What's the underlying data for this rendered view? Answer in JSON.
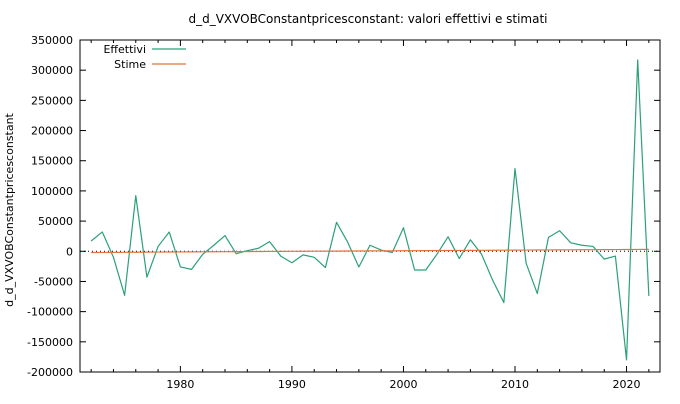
{
  "chart_data": {
    "type": "line",
    "title": "d_d_VXVOBConstantpricesconstant: valori effettivi e stimati",
    "xlabel": "",
    "ylabel": "d_d_VXVOBConstantpricesconstant",
    "xlim": [
      1971,
      2023
    ],
    "ylim": [
      -200000,
      350000
    ],
    "grid": false,
    "legend_position": "top-left",
    "x_ticks": [
      1980,
      1990,
      2000,
      2010,
      2020
    ],
    "x_tick_labels": [
      "1980",
      "1990",
      "2000",
      "2010",
      "2020"
    ],
    "y_ticks": [
      -200000,
      -150000,
      -100000,
      -50000,
      0,
      50000,
      100000,
      150000,
      200000,
      250000,
      300000,
      350000
    ],
    "y_tick_labels": [
      "-200000",
      "-150000",
      "-100000",
      "-50000",
      "0",
      "50000",
      "100000",
      "150000",
      "200000",
      "250000",
      "300000",
      "350000"
    ],
    "zero_line": true,
    "x": [
      1972,
      1973,
      1974,
      1975,
      1976,
      1977,
      1978,
      1979,
      1980,
      1981,
      1982,
      1983,
      1984,
      1985,
      1986,
      1987,
      1988,
      1989,
      1990,
      1991,
      1992,
      1993,
      1994,
      1995,
      1996,
      1997,
      1998,
      1999,
      2000,
      2001,
      2002,
      2003,
      2004,
      2005,
      2006,
      2007,
      2008,
      2009,
      2010,
      2011,
      2012,
      2013,
      2014,
      2015,
      2016,
      2017,
      2018,
      2019,
      2020,
      2021,
      2022
    ],
    "series": [
      {
        "name": "Effettivi",
        "color": "#2ca07a",
        "values": [
          17000,
          32000,
          -10000,
          -73000,
          92000,
          -43000,
          8000,
          32000,
          -26000,
          -30000,
          -5000,
          10000,
          26000,
          -4000,
          1000,
          5000,
          16000,
          -8000,
          -19000,
          -6000,
          -10000,
          -27000,
          48000,
          15000,
          -26000,
          10000,
          2000,
          -2000,
          39000,
          -31000,
          -31000,
          -5000,
          24000,
          -12000,
          19000,
          -5000,
          -48000,
          -85000,
          137000,
          -20000,
          -70000,
          23000,
          34000,
          14000,
          10000,
          8000,
          -13000,
          -8000,
          -180000,
          317000,
          -74000
        ]
      },
      {
        "name": "Stime",
        "color": "#e0743b",
        "values": [
          -2000,
          -1900,
          -1800,
          -1700,
          -1600,
          -1400,
          -1300,
          -1200,
          -1100,
          -1000,
          -900,
          -800,
          -700,
          -600,
          -500,
          -400,
          -300,
          -200,
          -100,
          0,
          100,
          200,
          300,
          400,
          500,
          600,
          700,
          800,
          900,
          1000,
          1100,
          1200,
          1300,
          1400,
          1500,
          1600,
          1700,
          1800,
          1900,
          2000,
          2100,
          2200,
          2300,
          2400,
          2500,
          2600,
          2700,
          2800,
          2900,
          3000,
          3100
        ]
      }
    ]
  }
}
